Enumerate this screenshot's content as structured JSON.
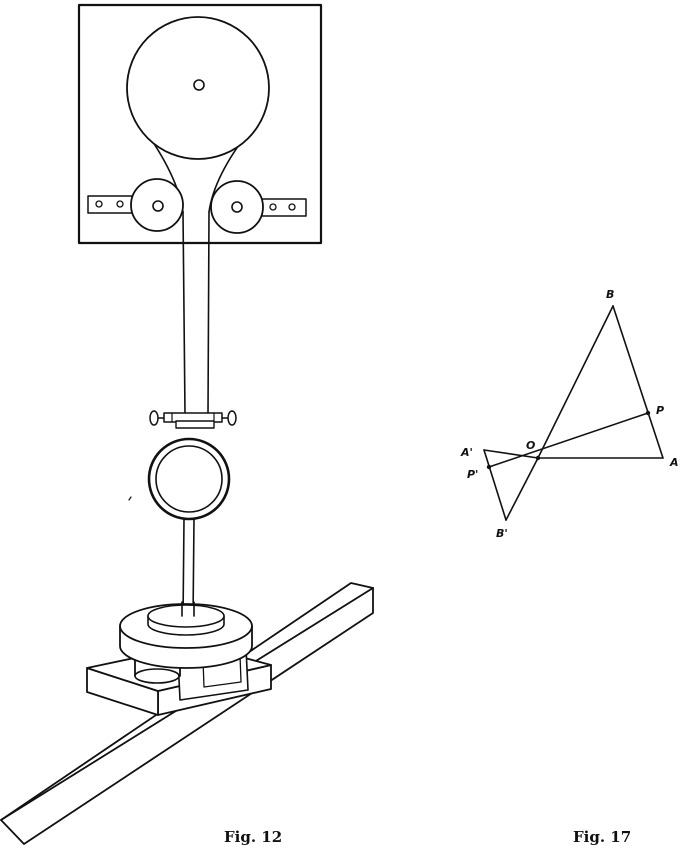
{
  "figures": {
    "apparatus": {
      "caption": "Fig. 12"
    },
    "geometry": {
      "caption": "Fig. 17",
      "labels": {
        "A": "A",
        "B": "B",
        "O": "O",
        "P": "P",
        "A_prime": "A'",
        "B_prime": "B'",
        "P_prime": "P'"
      }
    }
  },
  "colors": {
    "ink": "#111111",
    "paper": "#ffffff"
  }
}
